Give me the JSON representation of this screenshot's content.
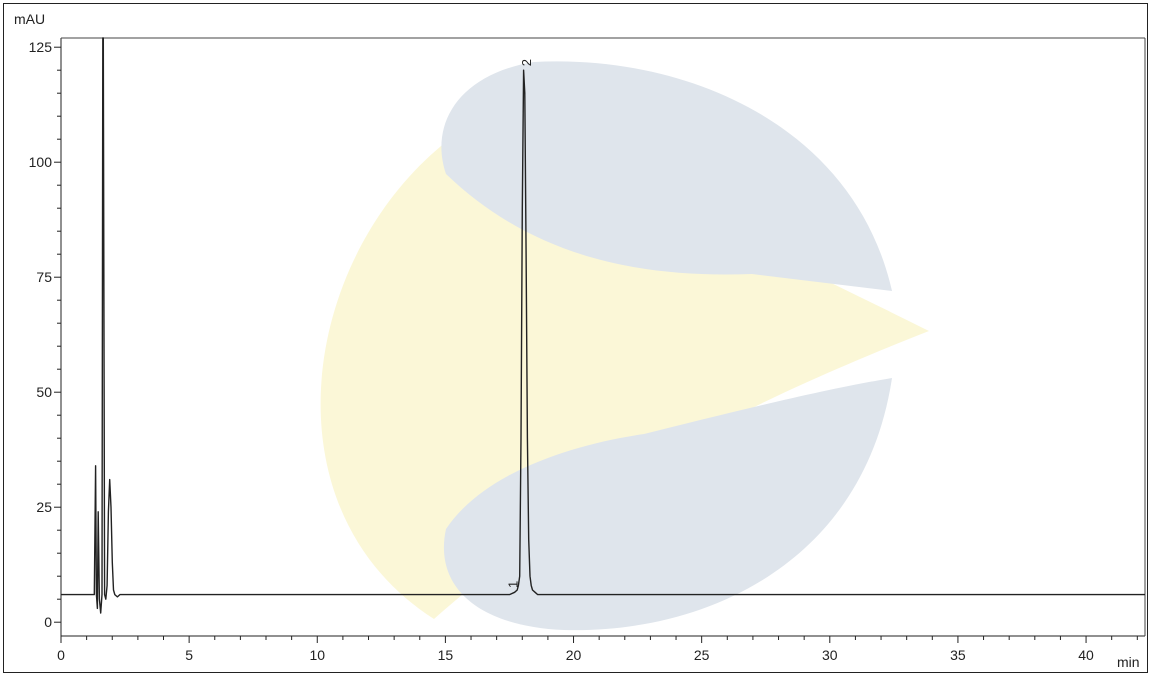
{
  "chart_data": {
    "type": "line",
    "title": "",
    "ylabel": "mAU",
    "xlabel": "min",
    "xlim": [
      0,
      42.3
    ],
    "ylim": [
      -3,
      127
    ],
    "x_ticks": [
      0,
      5,
      10,
      15,
      20,
      25,
      30,
      35,
      40
    ],
    "y_ticks": [
      0,
      25,
      50,
      75,
      100,
      125
    ],
    "grid": false,
    "baseline": 6,
    "series": [
      {
        "x": [
          0,
          1.3,
          1.35,
          1.38,
          1.42,
          1.45,
          1.5,
          1.55,
          1.6,
          1.63,
          1.65,
          1.7,
          1.75,
          1.8,
          1.85,
          1.9,
          1.95,
          2.0,
          2.05,
          2.1,
          2.2,
          2.3,
          2.5,
          3.0,
          10,
          17.5,
          17.7,
          17.8,
          17.85,
          17.9,
          17.95,
          18.0,
          18.05,
          18.1,
          18.15,
          18.2,
          18.25,
          18.3,
          18.35,
          18.4,
          18.5,
          18.6,
          18.8,
          19.5,
          25,
          30,
          35,
          40,
          42.3
        ],
        "y": [
          6,
          6,
          34,
          6,
          3,
          24,
          5,
          2,
          6,
          127,
          127,
          6,
          5,
          8,
          24,
          31,
          25,
          13,
          7,
          6,
          5.5,
          6,
          6,
          6,
          6,
          6,
          6.5,
          7,
          8,
          10,
          40,
          90,
          120,
          115,
          80,
          40,
          18,
          10,
          8,
          7,
          6.5,
          6,
          6,
          6,
          6,
          6,
          6,
          6,
          6
        ]
      }
    ],
    "annotations": [
      {
        "text": "1",
        "x": 17.9,
        "y": 7
      },
      {
        "text": "2",
        "x": 18.1,
        "y": 120
      }
    ]
  },
  "watermark": {
    "arc_color": "#fbf7d7",
    "c_color": "#dfe5ec"
  }
}
